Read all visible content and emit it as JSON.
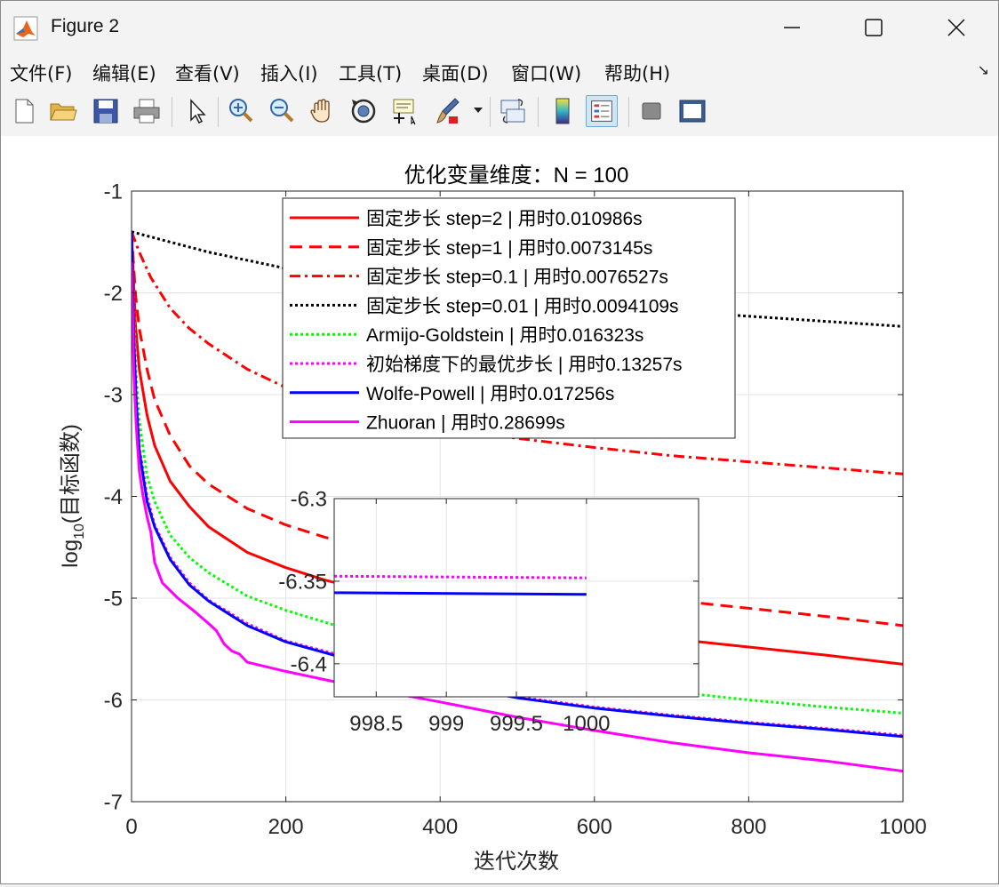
{
  "window": {
    "title": "Figure 2",
    "controls": [
      "minimize",
      "maximize",
      "close"
    ]
  },
  "menu": [
    "文件(F)",
    "编辑(E)",
    "查看(V)",
    "插入(I)",
    "工具(T)",
    "桌面(D)",
    "窗口(W)",
    "帮助(H)"
  ],
  "toolbar": {
    "icons": [
      "new-figure-icon",
      "open-file-icon",
      "save-icon",
      "print-icon",
      "pointer-icon",
      "zoom-in-icon",
      "zoom-out-icon",
      "pan-icon",
      "rotate-3d-icon",
      "data-cursor-icon",
      "brush-icon",
      "link-plot-icon",
      "colorbar-icon",
      "legend-icon",
      "hide-plot-tools-icon",
      "show-plot-tools-icon"
    ],
    "active": "legend-icon"
  },
  "colors": {
    "red": "#ff0000",
    "black": "#000000",
    "green": "#00ff00",
    "magenta": "#ff00ff",
    "blue": "#0000ff"
  },
  "chart_data": [
    {
      "type": "line",
      "title": "优化变量维度：N = 100",
      "xlabel": "迭代次数",
      "ylabel": "log10(目标函数)",
      "ylabel_base": "log",
      "ylabel_sub": "10",
      "ylabel_rest": "(目标函数)",
      "xlim": [
        0,
        1000
      ],
      "ylim": [
        -7,
        -1
      ],
      "xticks": [
        0,
        200,
        400,
        600,
        800,
        1000
      ],
      "yticks": [
        -1,
        -2,
        -3,
        -4,
        -5,
        -6,
        -7
      ],
      "xtick_labels": [
        "0",
        "200",
        "400",
        "600",
        "800",
        "1000"
      ],
      "ytick_labels": [
        "-1",
        "-2",
        "-3",
        "-4",
        "-5",
        "-6",
        "-7"
      ],
      "grid": true,
      "legend_position": "top-center",
      "series": [
        {
          "name": "固定步长 step=2 | 用时0.010986s",
          "color": "#ff0000",
          "dash": "solid",
          "x": [
            0,
            5,
            10,
            20,
            30,
            50,
            75,
            100,
            150,
            200,
            250,
            300,
            400,
            500,
            600,
            700,
            800,
            900,
            1000
          ],
          "y": [
            -1.4,
            -2.3,
            -2.75,
            -3.2,
            -3.5,
            -3.85,
            -4.1,
            -4.3,
            -4.55,
            -4.7,
            -4.82,
            -4.92,
            -5.08,
            -5.2,
            -5.3,
            -5.4,
            -5.48,
            -5.56,
            -5.65
          ]
        },
        {
          "name": "固定步长 step=1 | 用时0.0073145s",
          "color": "#ff0000",
          "dash": "dashed",
          "x": [
            0,
            5,
            10,
            20,
            30,
            50,
            75,
            100,
            150,
            200,
            250,
            300,
            400,
            500,
            600,
            700,
            800,
            900,
            1000
          ],
          "y": [
            -1.4,
            -2.0,
            -2.35,
            -2.75,
            -3.05,
            -3.4,
            -3.7,
            -3.88,
            -4.12,
            -4.28,
            -4.4,
            -4.5,
            -4.67,
            -4.8,
            -4.92,
            -5.02,
            -5.1,
            -5.18,
            -5.27
          ]
        },
        {
          "name": "固定步长 step=0.1 | 用时0.0076527s",
          "color": "#ff0000",
          "dash": "dashdot",
          "x": [
            0,
            10,
            25,
            50,
            75,
            100,
            150,
            200,
            250,
            300,
            400,
            500,
            600,
            700,
            800,
            900,
            1000
          ],
          "y": [
            -1.4,
            -1.6,
            -1.85,
            -2.15,
            -2.35,
            -2.5,
            -2.75,
            -2.93,
            -3.05,
            -3.15,
            -3.32,
            -3.43,
            -3.52,
            -3.6,
            -3.66,
            -3.72,
            -3.78
          ]
        },
        {
          "name": "固定步长 step=0.01 | 用时0.0094109s",
          "color": "#000000",
          "dash": "dotted",
          "x": [
            0,
            50,
            100,
            200,
            300,
            400,
            500,
            600,
            700,
            800,
            900,
            1000
          ],
          "y": [
            -1.4,
            -1.5,
            -1.6,
            -1.76,
            -1.88,
            -1.98,
            -2.06,
            -2.13,
            -2.18,
            -2.23,
            -2.28,
            -2.33
          ]
        },
        {
          "name": "Armijo-Goldstein | 用时0.016323s",
          "color": "#00ff00",
          "dash": "dotted",
          "x": [
            0,
            3,
            6,
            10,
            20,
            30,
            50,
            75,
            100,
            150,
            200,
            300,
            400,
            500,
            600,
            700,
            800,
            900,
            1000
          ],
          "y": [
            -1.45,
            -2.2,
            -2.8,
            -3.25,
            -3.8,
            -4.05,
            -4.38,
            -4.6,
            -4.75,
            -4.98,
            -5.12,
            -5.35,
            -5.55,
            -5.7,
            -5.82,
            -5.92,
            -6.0,
            -6.07,
            -6.13
          ]
        },
        {
          "name": "初始梯度下的最优步长 | 用时0.13257s",
          "color": "#ff00ff",
          "dash": "dotted",
          "x": [
            0,
            3,
            6,
            10,
            20,
            30,
            50,
            75,
            100,
            150,
            200,
            300,
            400,
            500,
            600,
            700,
            800,
            900,
            1000
          ],
          "y": [
            -1.4,
            -2.4,
            -3.0,
            -3.5,
            -4.0,
            -4.28,
            -4.6,
            -4.85,
            -5.02,
            -5.25,
            -5.42,
            -5.62,
            -5.82,
            -5.97,
            -6.07,
            -6.15,
            -6.22,
            -6.28,
            -6.348
          ]
        },
        {
          "name": "Wolfe-Powell | 用时0.017256s",
          "color": "#0000ff",
          "dash": "solid",
          "x": [
            0,
            3,
            6,
            10,
            20,
            30,
            50,
            75,
            100,
            150,
            200,
            300,
            400,
            500,
            600,
            700,
            800,
            900,
            1000
          ],
          "y": [
            -1.4,
            -2.45,
            -3.05,
            -3.55,
            -4.05,
            -4.3,
            -4.62,
            -4.87,
            -5.03,
            -5.27,
            -5.43,
            -5.64,
            -5.84,
            -5.98,
            -6.08,
            -6.16,
            -6.23,
            -6.29,
            -6.36
          ]
        },
        {
          "name": "Zhuoran | 用时0.28699s",
          "color": "#ff00ff",
          "dash": "solid",
          "x": [
            0,
            3,
            6,
            10,
            15,
            20,
            25,
            30,
            40,
            60,
            80,
            100,
            110,
            120,
            130,
            140,
            150,
            200,
            250,
            300,
            400,
            500,
            600,
            700,
            800,
            900,
            1000
          ],
          "y": [
            -1.7,
            -2.8,
            -3.3,
            -3.75,
            -4.0,
            -4.2,
            -4.35,
            -4.65,
            -4.85,
            -5.0,
            -5.12,
            -5.25,
            -5.32,
            -5.45,
            -5.52,
            -5.55,
            -5.63,
            -5.72,
            -5.8,
            -5.88,
            -6.02,
            -6.17,
            -6.3,
            -6.42,
            -6.52,
            -6.6,
            -6.7
          ]
        }
      ]
    },
    {
      "type": "line",
      "title": "",
      "xlim": [
        998.2,
        1000.8
      ],
      "ylim": [
        -6.42,
        -6.3
      ],
      "xticks": [
        998.5,
        999,
        999.5,
        1000
      ],
      "yticks": [
        -6.3,
        -6.35,
        -6.4
      ],
      "xtick_labels": [
        "998.5",
        "999",
        "999.5",
        "1000"
      ],
      "ytick_labels": [
        "-6.3",
        "-6.35",
        "-6.4"
      ],
      "grid": true,
      "series": [
        {
          "color": "#ff00ff",
          "dash": "dotted",
          "x": [
            998.2,
            1000
          ],
          "y": [
            -6.347,
            -6.348
          ]
        },
        {
          "color": "#0000ff",
          "dash": "solid",
          "x": [
            998.2,
            1000
          ],
          "y": [
            -6.357,
            -6.358
          ]
        }
      ]
    }
  ]
}
